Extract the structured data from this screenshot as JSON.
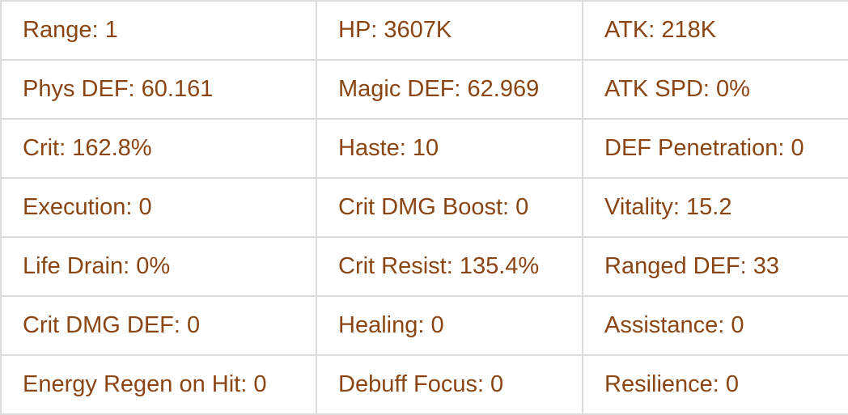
{
  "text_color": "#8b4513",
  "rows": [
    [
      "Range: 1",
      "HP: 3607K",
      "ATK: 218K"
    ],
    [
      "Phys DEF: 60.161",
      "Magic DEF: 62.969",
      "ATK SPD: 0%"
    ],
    [
      "Crit: 162.8%",
      "Haste: 10",
      "DEF Penetration: 0"
    ],
    [
      "Execution: 0",
      "Crit DMG Boost: 0",
      "Vitality: 15.2"
    ],
    [
      "Life Drain: 0%",
      "Crit Resist: 135.4%",
      "Ranged DEF: 33"
    ],
    [
      "Crit DMG DEF: 0",
      "Healing: 0",
      "Assistance: 0"
    ],
    [
      "Energy Regen on Hit: 0",
      "Debuff Focus: 0",
      "Resilience: 0"
    ]
  ]
}
